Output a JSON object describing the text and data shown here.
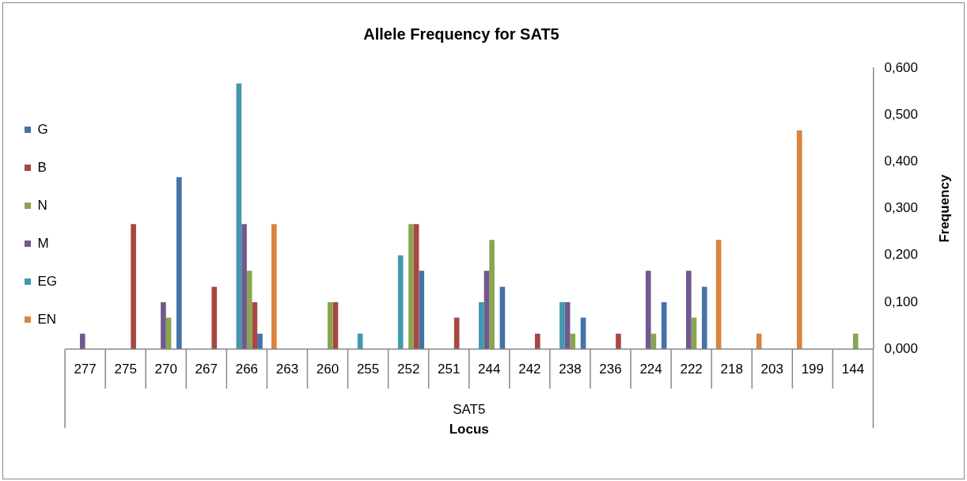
{
  "chart_data": {
    "type": "bar",
    "title": "Allele Frequency for SAT5",
    "xlabel": "Locus",
    "ylabel": "Frequency",
    "annotations": [
      "SAT5"
    ],
    "categories": [
      "277",
      "275",
      "270",
      "267",
      "266",
      "263",
      "260",
      "255",
      "252",
      "251",
      "244",
      "242",
      "238",
      "236",
      "224",
      "222",
      "218",
      "203",
      "199",
      "144"
    ],
    "series": [
      {
        "name": "G",
        "color": "#4572a7",
        "values": [
          null,
          null,
          0.367,
          null,
          0.033,
          null,
          null,
          null,
          0.167,
          null,
          0.133,
          null,
          0.067,
          null,
          0.1,
          0.133,
          null,
          null,
          null,
          null
        ]
      },
      {
        "name": "B",
        "color": "#aa4643",
        "values": [
          null,
          0.267,
          null,
          0.133,
          0.1,
          null,
          0.1,
          null,
          0.267,
          0.067,
          null,
          0.033,
          null,
          0.033,
          null,
          null,
          null,
          null,
          null,
          null
        ]
      },
      {
        "name": "N",
        "color": "#89a54e",
        "values": [
          null,
          null,
          0.067,
          null,
          0.167,
          null,
          0.1,
          null,
          0.267,
          null,
          0.233,
          null,
          0.033,
          null,
          0.033,
          0.067,
          null,
          null,
          null,
          0.033
        ]
      },
      {
        "name": "M",
        "color": "#71588f",
        "values": [
          0.033,
          null,
          0.1,
          null,
          0.267,
          null,
          null,
          null,
          null,
          null,
          0.167,
          null,
          0.1,
          null,
          0.167,
          0.167,
          null,
          null,
          null,
          null
        ]
      },
      {
        "name": "EG",
        "color": "#4198af",
        "values": [
          null,
          null,
          null,
          null,
          0.567,
          null,
          null,
          0.033,
          0.2,
          null,
          0.1,
          null,
          0.1,
          null,
          null,
          null,
          null,
          null,
          null,
          null
        ]
      },
      {
        "name": "EN",
        "color": "#db843d",
        "values": [
          null,
          null,
          null,
          null,
          null,
          0.267,
          null,
          null,
          null,
          null,
          null,
          null,
          null,
          null,
          null,
          null,
          0.233,
          0.033,
          0.467,
          null
        ]
      }
    ],
    "ylim": [
      0,
      0.6
    ],
    "yticks": [
      {
        "value": 0,
        "label": "0,000"
      },
      {
        "value": 0.1,
        "label": "0,100"
      },
      {
        "value": 0.2,
        "label": "0,200"
      },
      {
        "value": 0.3,
        "label": "0,300"
      },
      {
        "value": 0.4,
        "label": "0,400"
      },
      {
        "value": 0.5,
        "label": "0,500"
      },
      {
        "value": 0.6,
        "label": "0,600"
      }
    ],
    "grid": false,
    "legend": "left"
  }
}
